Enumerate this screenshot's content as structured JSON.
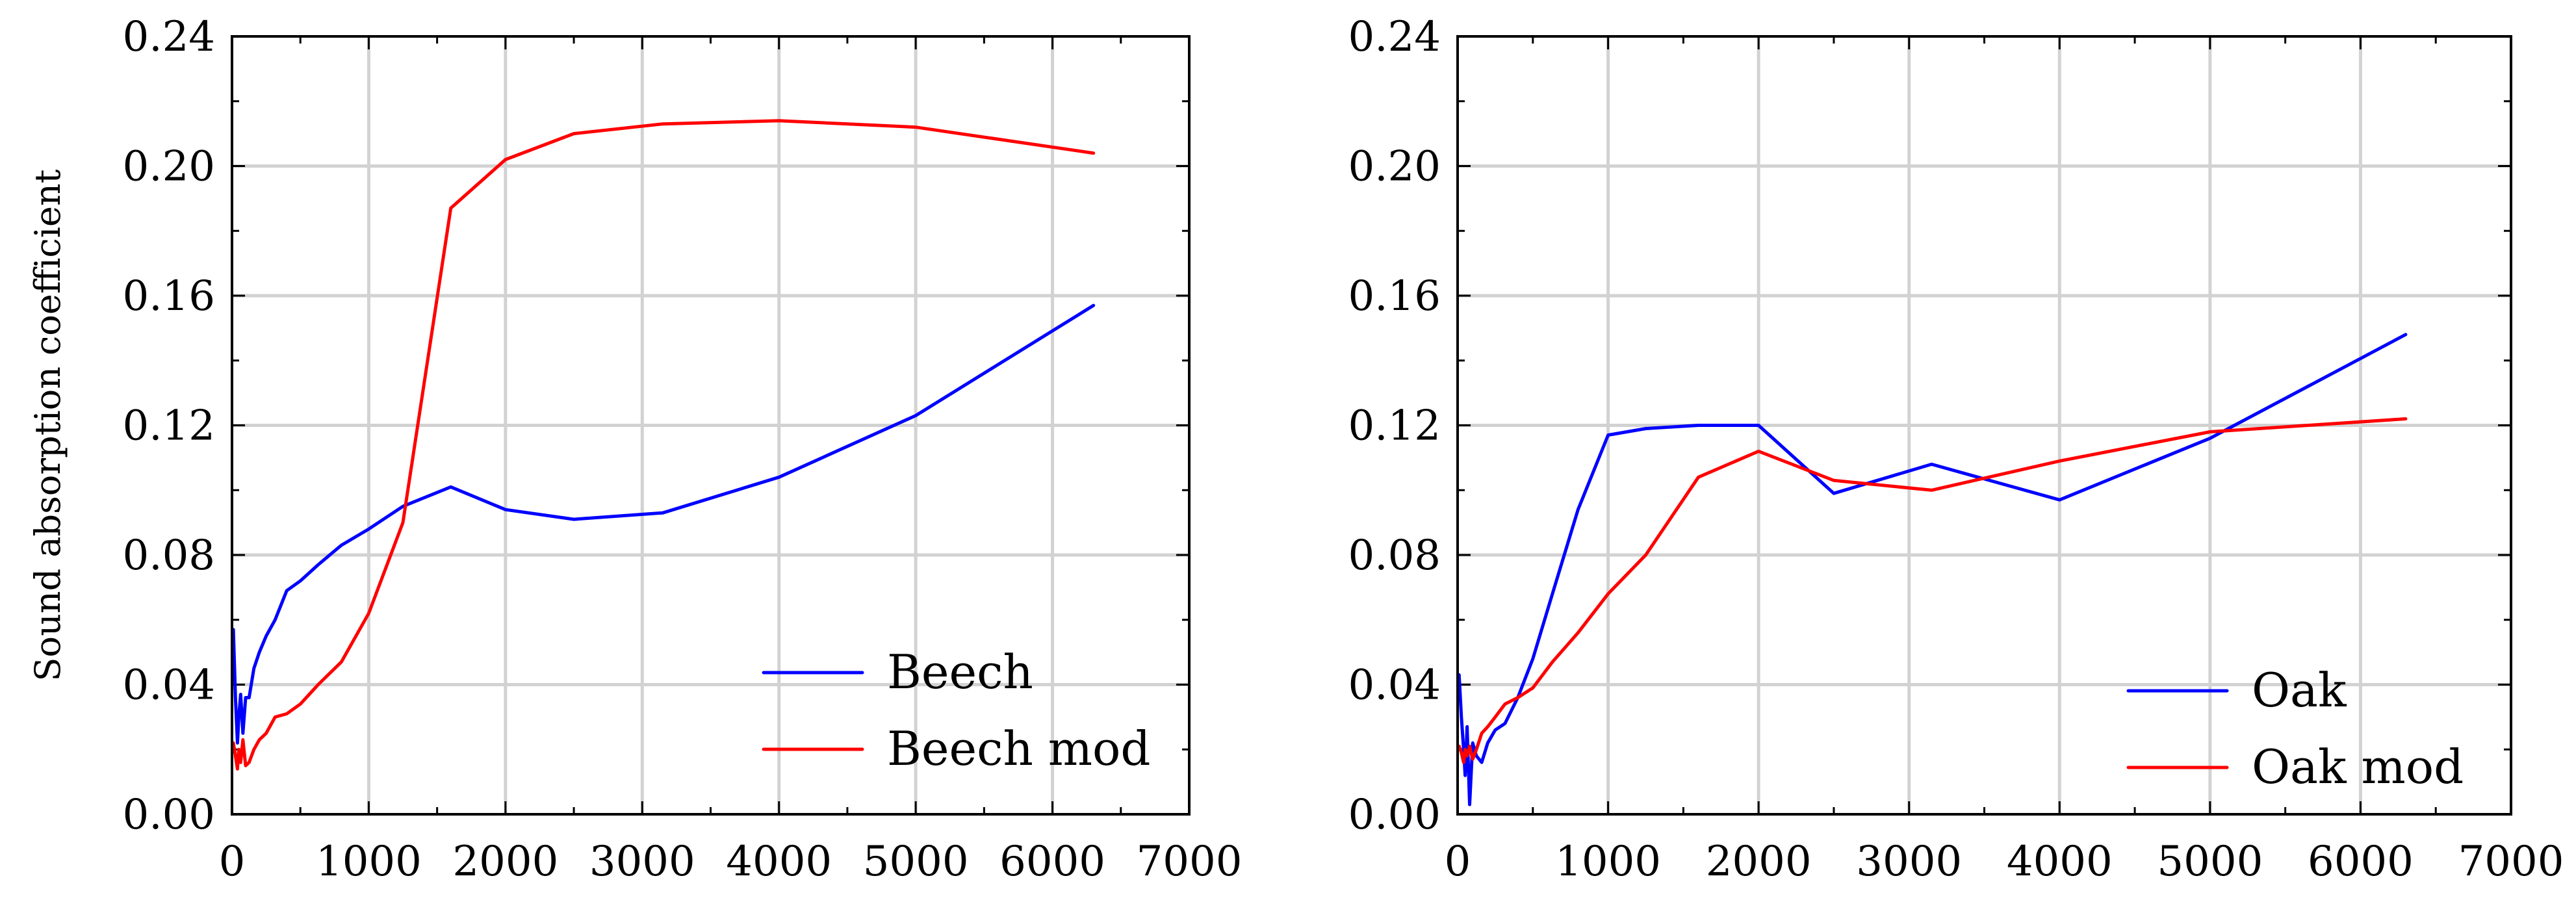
{
  "chart_data": [
    {
      "type": "line",
      "title": "",
      "xlabel": "",
      "ylabel": "Sound absorption coefficient",
      "xlim": [
        0,
        7000
      ],
      "ylim": [
        0,
        0.24
      ],
      "grid": true,
      "legend_position": "bottom-right",
      "x_ticks": [
        "0",
        "1000",
        "2000",
        "3000",
        "4000",
        "5000",
        "6000",
        "7000"
      ],
      "y_ticks": [
        "0.00",
        "0.04",
        "0.08",
        "0.12",
        "0.16",
        "0.20",
        "0.24"
      ],
      "series": [
        {
          "name": "Beech",
          "color": "#0000ff",
          "x": [
            10,
            25,
            40,
            50,
            63,
            80,
            100,
            125,
            160,
            200,
            250,
            315,
            400,
            500,
            630,
            800,
            1000,
            1250,
            1600,
            2000,
            2500,
            3150,
            4000,
            5000,
            6300
          ],
          "y": [
            0.057,
            0.036,
            0.022,
            0.03,
            0.037,
            0.025,
            0.036,
            0.036,
            0.045,
            0.05,
            0.055,
            0.06,
            0.069,
            0.072,
            0.077,
            0.083,
            0.088,
            0.095,
            0.101,
            0.094,
            0.091,
            0.093,
            0.104,
            0.123,
            0.157
          ]
        },
        {
          "name": "Beech mod",
          "color": "#ff0000",
          "x": [
            10,
            25,
            40,
            50,
            63,
            80,
            100,
            125,
            160,
            200,
            250,
            315,
            400,
            500,
            630,
            800,
            1000,
            1250,
            1600,
            2000,
            2500,
            3150,
            4000,
            5000,
            6300
          ],
          "y": [
            0.022,
            0.018,
            0.014,
            0.02,
            0.016,
            0.023,
            0.015,
            0.016,
            0.02,
            0.023,
            0.025,
            0.03,
            0.031,
            0.034,
            0.04,
            0.047,
            0.062,
            0.09,
            0.187,
            0.202,
            0.21,
            0.213,
            0.214,
            0.212,
            0.204
          ]
        }
      ]
    },
    {
      "type": "line",
      "title": "",
      "xlabel": "",
      "ylabel": "",
      "xlim": [
        0,
        7000
      ],
      "ylim": [
        0,
        0.24
      ],
      "grid": true,
      "legend_position": "bottom-right",
      "x_ticks": [
        "0",
        "1000",
        "2000",
        "3000",
        "4000",
        "5000",
        "6000",
        "7000"
      ],
      "y_ticks": [
        "0.00",
        "0.04",
        "0.08",
        "0.12",
        "0.16",
        "0.20",
        "0.24"
      ],
      "series": [
        {
          "name": "Oak",
          "color": "#0000ff",
          "x": [
            10,
            25,
            40,
            50,
            63,
            80,
            100,
            125,
            160,
            200,
            250,
            315,
            400,
            500,
            630,
            800,
            1000,
            1250,
            1600,
            2000,
            2500,
            3150,
            4000,
            5000,
            6300
          ],
          "y": [
            0.043,
            0.03,
            0.02,
            0.012,
            0.027,
            0.003,
            0.022,
            0.018,
            0.016,
            0.022,
            0.026,
            0.028,
            0.036,
            0.048,
            0.068,
            0.094,
            0.117,
            0.119,
            0.12,
            0.12,
            0.099,
            0.108,
            0.097,
            0.116,
            0.148
          ]
        },
        {
          "name": "Oak mod",
          "color": "#ff0000",
          "x": [
            10,
            25,
            40,
            50,
            63,
            80,
            100,
            125,
            160,
            200,
            250,
            315,
            400,
            500,
            630,
            800,
            1000,
            1250,
            1600,
            2000,
            2500,
            3150,
            4000,
            5000,
            6300
          ],
          "y": [
            0.021,
            0.019,
            0.016,
            0.02,
            0.018,
            0.021,
            0.017,
            0.02,
            0.025,
            0.027,
            0.03,
            0.034,
            0.036,
            0.039,
            0.047,
            0.056,
            0.068,
            0.08,
            0.104,
            0.112,
            0.103,
            0.1,
            0.109,
            0.118,
            0.122
          ]
        }
      ]
    }
  ]
}
